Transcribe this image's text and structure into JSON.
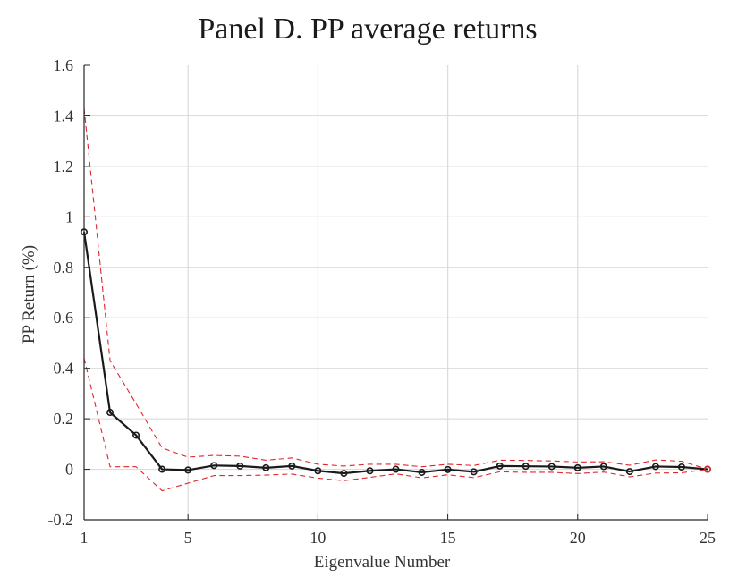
{
  "chart_data": {
    "type": "line",
    "title": "Panel D. PP average returns",
    "xlabel": "Eigenvalue Number",
    "ylabel": "PP Return (%)",
    "xlim": [
      1,
      25
    ],
    "ylim": [
      -0.2,
      1.6
    ],
    "x_ticks": [
      1,
      5,
      10,
      15,
      20,
      25
    ],
    "x_tick_labels": [
      "1",
      "5",
      "10",
      "15",
      "20",
      "25"
    ],
    "y_ticks": [
      -0.2,
      0,
      0.2,
      0.4,
      0.6,
      0.8,
      1,
      1.2,
      1.4,
      1.6
    ],
    "y_tick_labels": [
      "-0.2",
      "0",
      "0.2",
      "0.4",
      "0.6",
      "0.8",
      "1",
      "1.2",
      "1.4",
      "1.6"
    ],
    "grid": true,
    "legend": "none",
    "x": [
      1,
      2,
      3,
      4,
      5,
      6,
      7,
      8,
      9,
      10,
      11,
      12,
      13,
      14,
      15,
      16,
      17,
      18,
      19,
      20,
      21,
      22,
      23,
      24,
      25
    ],
    "series": [
      {
        "role": "mean",
        "color": "#1a1a1a",
        "style": "solid-circle-markers",
        "values": [
          0.94,
          0.225,
          0.135,
          0.0,
          -0.003,
          0.015,
          0.013,
          0.006,
          0.013,
          -0.006,
          -0.016,
          -0.006,
          0.0,
          -0.012,
          -0.001,
          -0.01,
          0.013,
          0.012,
          0.011,
          0.006,
          0.011,
          -0.009,
          0.011,
          0.009,
          0.0
        ]
      },
      {
        "role": "upper-band",
        "color": "#e0262b",
        "style": "dashed",
        "values": [
          1.43,
          0.43,
          0.26,
          0.085,
          0.048,
          0.055,
          0.052,
          0.036,
          0.045,
          0.02,
          0.013,
          0.02,
          0.02,
          0.01,
          0.02,
          0.015,
          0.036,
          0.035,
          0.033,
          0.029,
          0.03,
          0.016,
          0.037,
          0.032,
          0.0
        ]
      },
      {
        "role": "lower-band",
        "color": "#e0262b",
        "style": "dashed",
        "values": [
          0.44,
          0.01,
          0.01,
          -0.085,
          -0.055,
          -0.025,
          -0.025,
          -0.023,
          -0.019,
          -0.035,
          -0.045,
          -0.032,
          -0.018,
          -0.034,
          -0.022,
          -0.033,
          -0.01,
          -0.012,
          -0.012,
          -0.017,
          -0.011,
          -0.03,
          -0.015,
          -0.014,
          0.0
        ]
      }
    ]
  }
}
